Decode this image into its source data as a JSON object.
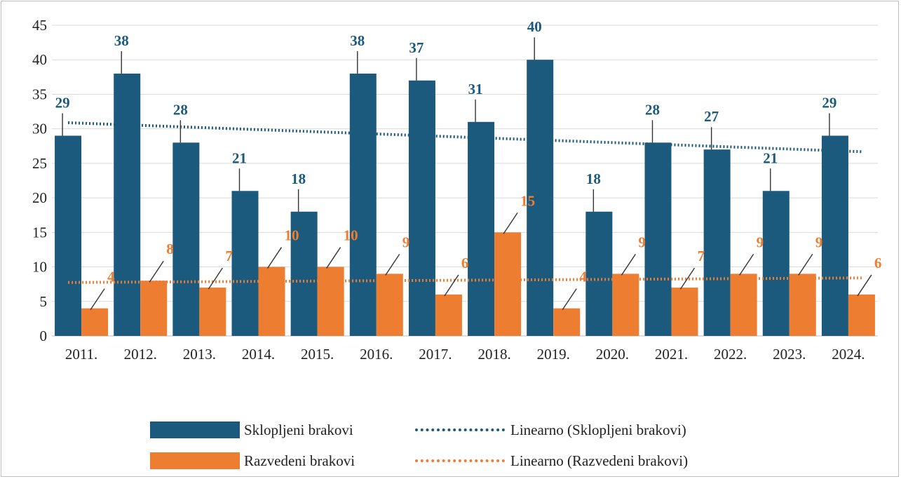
{
  "chart_data": {
    "type": "bar",
    "categories": [
      "2011.",
      "2012.",
      "2013.",
      "2014.",
      "2015.",
      "2016.",
      "2017.",
      "2018.",
      "2019.",
      "2020.",
      "2021.",
      "2022.",
      "2023.",
      "2024."
    ],
    "series": [
      {
        "name": "Sklopljeni brakovi",
        "color": "#1b5a7c",
        "values": [
          29,
          38,
          28,
          21,
          18,
          38,
          37,
          31,
          40,
          18,
          28,
          27,
          21,
          29
        ]
      },
      {
        "name": "Razvedeni brakovi",
        "color": "#ed7d31",
        "values": [
          4,
          8,
          7,
          10,
          10,
          9,
          6,
          15,
          4,
          9,
          7,
          9,
          9,
          6
        ]
      }
    ],
    "trendlines": [
      {
        "name": "Linearno (Sklopljeni brakovi)",
        "series": 0,
        "color": "#1b5a7c",
        "style": "dotted"
      },
      {
        "name": "Linearno (Razvedeni brakovi)",
        "series": 1,
        "color": "#ed7d31",
        "style": "dotted"
      }
    ],
    "ylim": [
      0,
      45
    ],
    "yticks": [
      "0",
      "5",
      "10",
      "15",
      "20",
      "25",
      "30",
      "35",
      "40",
      "45"
    ],
    "grid": true,
    "legend_position": "bottom",
    "title": "",
    "xlabel": "",
    "ylabel": ""
  }
}
